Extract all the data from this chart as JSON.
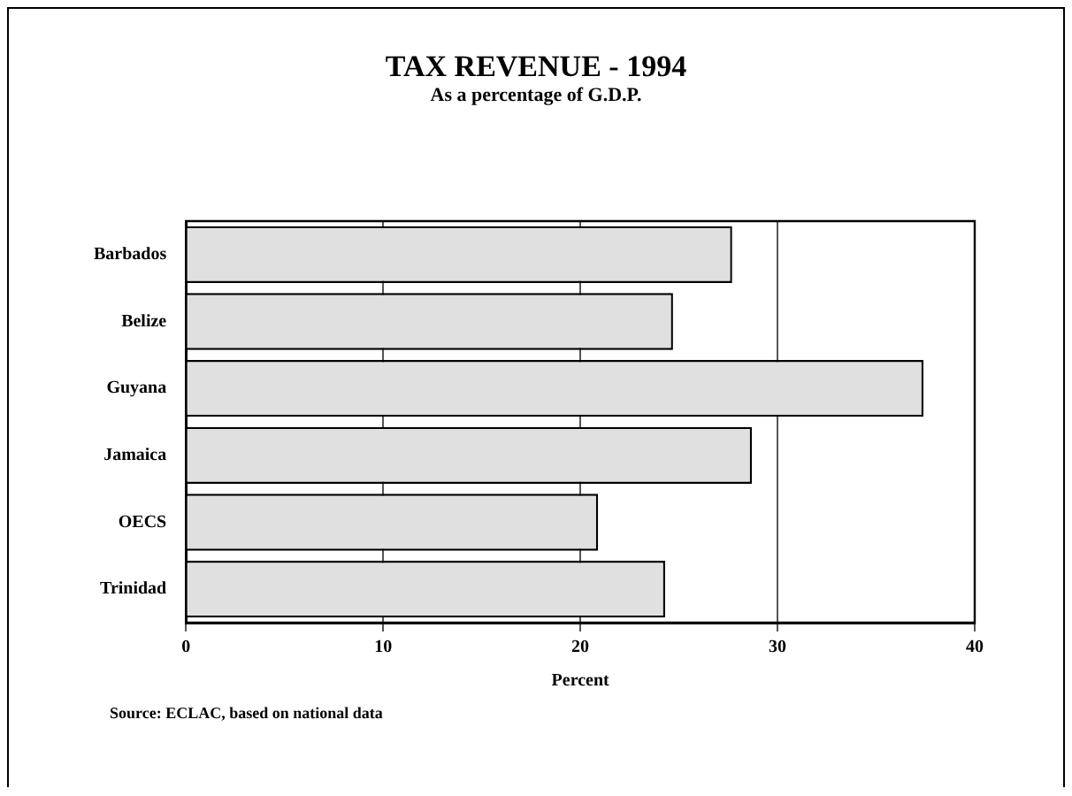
{
  "chart_data": {
    "type": "bar",
    "orientation": "horizontal",
    "title": "TAX REVENUE - 1994",
    "subtitle": "As a percentage of G.D.P.",
    "xlabel": "Percent",
    "categories": [
      "Barbados",
      "Belize",
      "Guyana",
      "Jamaica",
      "OECS",
      "Trinidad"
    ],
    "values": [
      27.7,
      24.7,
      37.4,
      28.7,
      20.9,
      24.3
    ],
    "color": "#e0e0e0",
    "xlim": [
      0,
      40
    ],
    "xticks": [
      0,
      10,
      20,
      30,
      40
    ],
    "grid": "x",
    "annotations": [
      "Source: ECLAC, based on national data"
    ]
  }
}
